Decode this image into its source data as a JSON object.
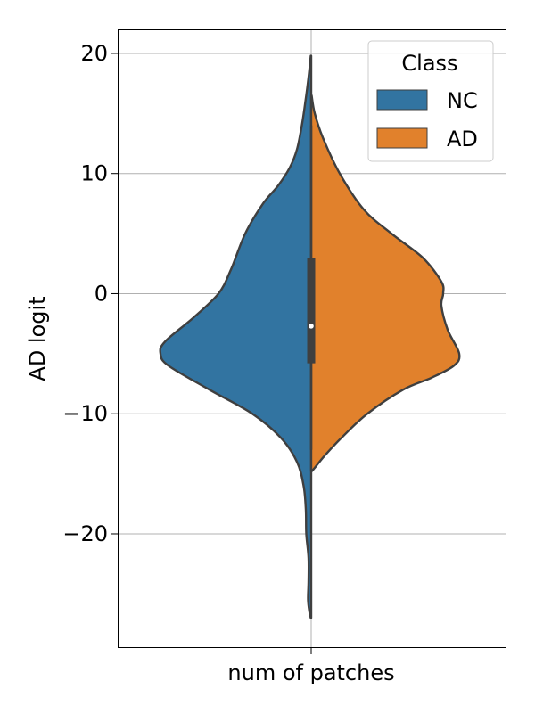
{
  "chart_data": {
    "type": "violin",
    "split": true,
    "category": "num of patches",
    "xlabel": "num of patches",
    "ylabel": "AD logit",
    "ylim": [
      -29.5,
      22
    ],
    "yticks": [
      20,
      10,
      0,
      -10,
      -20
    ],
    "ytick_labels": [
      "20",
      "10",
      "0",
      "−10",
      "−20"
    ],
    "grid": true,
    "legend": {
      "title": "Class",
      "placement": "top-right"
    },
    "series": [
      {
        "name": "NC",
        "side": "left",
        "color": "#3274a1",
        "profile": [
          [
            19.8,
            0.05
          ],
          [
            18,
            0.3
          ],
          [
            16,
            0.65
          ],
          [
            14,
            1.05
          ],
          [
            12,
            1.6
          ],
          [
            10.5,
            2.4
          ],
          [
            9,
            3.7
          ],
          [
            7.5,
            5.4
          ],
          [
            5,
            7.4
          ],
          [
            2,
            9.0
          ],
          [
            0,
            10.4
          ],
          [
            -2,
            13.2
          ],
          [
            -4,
            16.4
          ],
          [
            -5,
            16.9
          ],
          [
            -6,
            16.0
          ],
          [
            -8,
            11.4
          ],
          [
            -10,
            6.6
          ],
          [
            -12,
            3.4
          ],
          [
            -14,
            1.6
          ],
          [
            -16,
            0.85
          ],
          [
            -18,
            0.6
          ],
          [
            -20,
            0.55
          ],
          [
            -22,
            0.3
          ],
          [
            -24,
            0.3
          ],
          [
            -25.5,
            0.35
          ],
          [
            -26.5,
            0.2
          ],
          [
            -27,
            0.05
          ]
        ]
      },
      {
        "name": "AD",
        "side": "right",
        "color": "#e1812c",
        "profile": [
          [
            16.5,
            0.05
          ],
          [
            15,
            0.4
          ],
          [
            13,
            1.3
          ],
          [
            10,
            3.2
          ],
          [
            7,
            5.9
          ],
          [
            5,
            9.0
          ],
          [
            3,
            12.5
          ],
          [
            1,
            14.6
          ],
          [
            0,
            14.8
          ],
          [
            -1,
            14.6
          ],
          [
            -3,
            15.3
          ],
          [
            -5,
            16.6
          ],
          [
            -6,
            16.0
          ],
          [
            -7,
            13.5
          ],
          [
            -8,
            10.3
          ],
          [
            -10,
            6.3
          ],
          [
            -12,
            3.4
          ],
          [
            -13.5,
            1.5
          ],
          [
            -14.5,
            0.4
          ],
          [
            -14.8,
            0.05
          ]
        ]
      }
    ],
    "box": {
      "q1": -5.8,
      "median": -2.7,
      "q3": 3.0,
      "whisker_low": -13,
      "whisker_high": 14
    }
  }
}
